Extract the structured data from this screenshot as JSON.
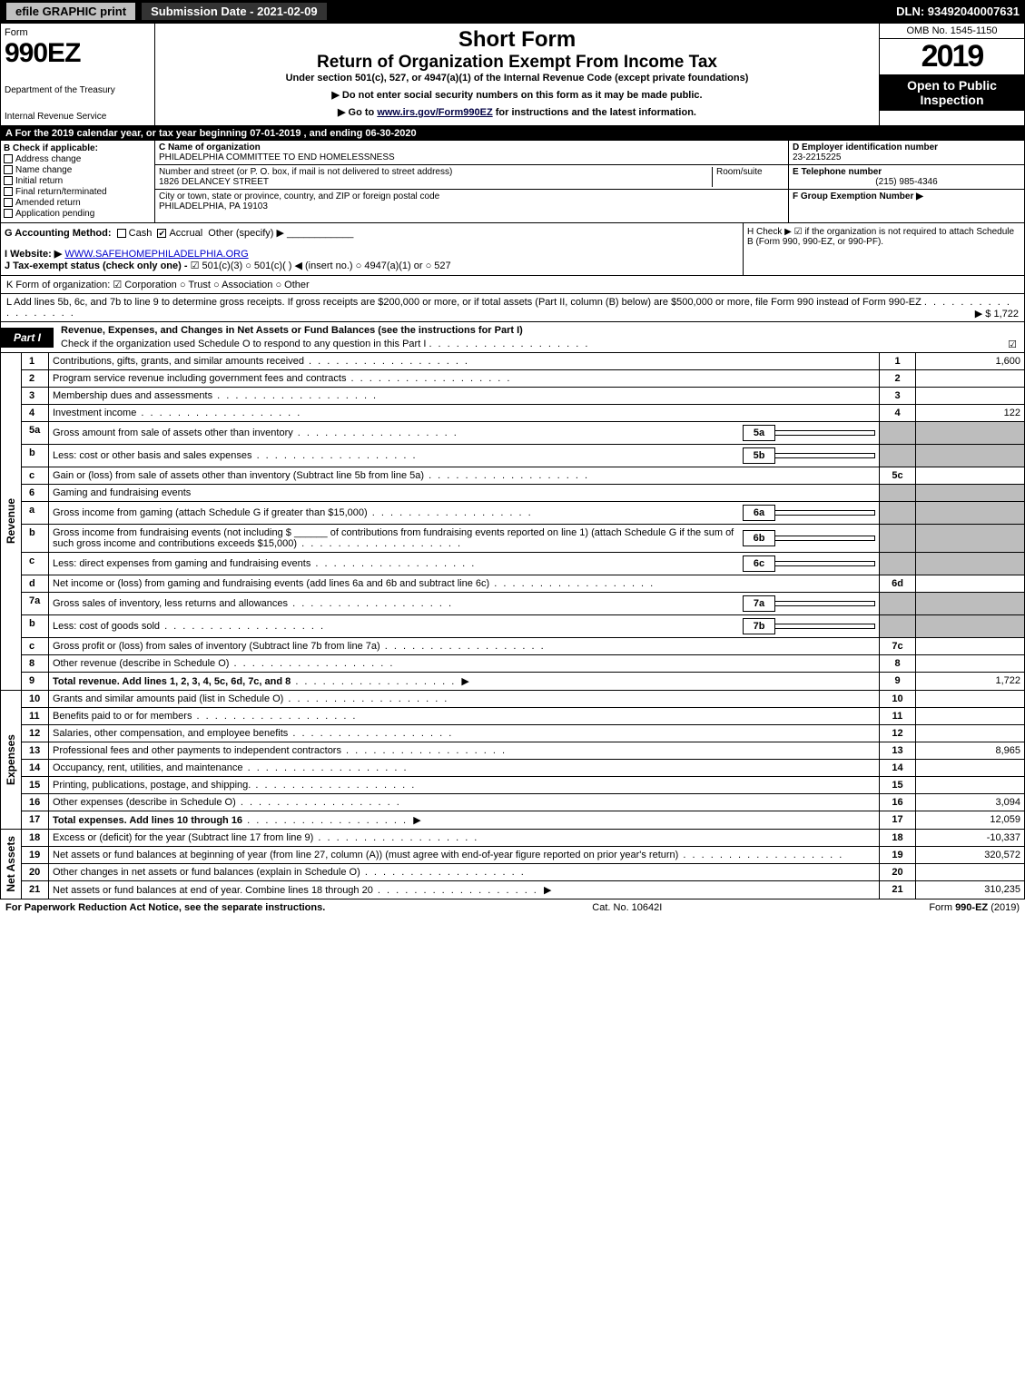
{
  "colors": {
    "black": "#000000",
    "white": "#ffffff",
    "grey_header_btn": "#c0c0c0",
    "grey_cell": "#bdbdbd",
    "link": "#0000cc"
  },
  "top_bar": {
    "efile": "efile GRAPHIC print",
    "submission": "Submission Date - 2021-02-09",
    "dln": "DLN: 93492040007631"
  },
  "header": {
    "form_word": "Form",
    "form_number": "990EZ",
    "dept1": "Department of the Treasury",
    "dept2": "Internal Revenue Service",
    "title1": "Short Form",
    "title2": "Return of Organization Exempt From Income Tax",
    "subtitle": "Under section 501(c), 527, or 4947(a)(1) of the Internal Revenue Code (except private foundations)",
    "note1": "▶ Do not enter social security numbers on this form as it may be made public.",
    "note2_pre": "▶ Go to ",
    "note2_link": "www.irs.gov/Form990EZ",
    "note2_post": " for instructions and the latest information.",
    "omb": "OMB No. 1545-1150",
    "year": "2019",
    "inspect1": "Open to Public",
    "inspect2": "Inspection"
  },
  "band_a": "A For the 2019 calendar year, or tax year beginning 07-01-2019 , and ending 06-30-2020",
  "section_b": {
    "label": "B  Check if applicable:",
    "opts": [
      "Address change",
      "Name change",
      "Initial return",
      "Final return/terminated",
      "Amended return",
      "Application pending"
    ],
    "c_label": "C Name of organization",
    "org_name": "PHILADELPHIA COMMITTEE TO END HOMELESSNESS",
    "addr_label": "Number and street (or P. O. box, if mail is not delivered to street address)",
    "room_label": "Room/suite",
    "addr": "1826 DELANCEY STREET",
    "city_label": "City or town, state or province, country, and ZIP or foreign postal code",
    "city": "PHILADELPHIA, PA  19103",
    "d_label": "D Employer identification number",
    "ein": "23-2215225",
    "e_label": "E Telephone number",
    "phone": "(215) 985-4346",
    "f_label": "F Group Exemption Number  ▶"
  },
  "section_g": {
    "g_label": "G Accounting Method:",
    "g_cash": "Cash",
    "g_accrual": "Accrual",
    "g_other": "Other (specify) ▶",
    "i_label": "I Website: ▶",
    "website": "WWW.SAFEHOMEPHILADELPHIA.ORG",
    "j_label": "J Tax-exempt status (check only one) -",
    "j_opts": "☑ 501(c)(3)  ○ 501(c)(  ) ◀ (insert no.)  ○ 4947(a)(1) or  ○ 527",
    "h_label": "H  Check ▶  ☑  if the organization is not required to attach Schedule B (Form 990, 990-EZ, or 990-PF)."
  },
  "line_k": "K Form of organization:   ☑ Corporation   ○ Trust   ○ Association   ○ Other",
  "line_l_text": "L Add lines 5b, 6c, and 7b to line 9 to determine gross receipts. If gross receipts are $200,000 or more, or if total assets (Part II, column (B) below) are $500,000 or more, file Form 990 instead of Form 990-EZ",
  "line_l_amount": "▶ $ 1,722",
  "part1": {
    "tab": "Part I",
    "title": "Revenue, Expenses, and Changes in Net Assets or Fund Balances (see the instructions for Part I)",
    "check_line": "Check if the organization used Schedule O to respond to any question in this Part I",
    "check_mark": "☑"
  },
  "side_labels": {
    "revenue": "Revenue",
    "expenses": "Expenses",
    "netassets": "Net Assets"
  },
  "rows_rev": [
    {
      "n": "1",
      "d": "Contributions, gifts, grants, and similar amounts received",
      "box": "1",
      "val": "1,600"
    },
    {
      "n": "2",
      "d": "Program service revenue including government fees and contracts",
      "box": "2",
      "val": ""
    },
    {
      "n": "3",
      "d": "Membership dues and assessments",
      "box": "3",
      "val": ""
    },
    {
      "n": "4",
      "d": "Investment income",
      "box": "4",
      "val": "122"
    },
    {
      "n": "5a",
      "d": "Gross amount from sale of assets other than inventory",
      "ibox": "5a",
      "ival": ""
    },
    {
      "n": "b",
      "d": "Less: cost or other basis and sales expenses",
      "ibox": "5b",
      "ival": ""
    },
    {
      "n": "c",
      "d": "Gain or (loss) from sale of assets other than inventory (Subtract line 5b from line 5a)",
      "box": "5c",
      "val": ""
    },
    {
      "n": "6",
      "d": "Gaming and fundraising events"
    },
    {
      "n": "a",
      "d": "Gross income from gaming (attach Schedule G if greater than $15,000)",
      "ibox": "6a",
      "ival": ""
    },
    {
      "n": "b",
      "d": "Gross income from fundraising events (not including $ ______ of contributions from fundraising events reported on line 1) (attach Schedule G if the sum of such gross income and contributions exceeds $15,000)",
      "ibox": "6b",
      "ival": ""
    },
    {
      "n": "c",
      "d": "Less: direct expenses from gaming and fundraising events",
      "ibox": "6c",
      "ival": ""
    },
    {
      "n": "d",
      "d": "Net income or (loss) from gaming and fundraising events (add lines 6a and 6b and subtract line 6c)",
      "box": "6d",
      "val": ""
    },
    {
      "n": "7a",
      "d": "Gross sales of inventory, less returns and allowances",
      "ibox": "7a",
      "ival": ""
    },
    {
      "n": "b",
      "d": "Less: cost of goods sold",
      "ibox": "7b",
      "ival": ""
    },
    {
      "n": "c",
      "d": "Gross profit or (loss) from sales of inventory (Subtract line 7b from line 7a)",
      "box": "7c",
      "val": ""
    },
    {
      "n": "8",
      "d": "Other revenue (describe in Schedule O)",
      "box": "8",
      "val": ""
    },
    {
      "n": "9",
      "d": "Total revenue. Add lines 1, 2, 3, 4, 5c, 6d, 7c, and 8",
      "box": "9",
      "val": "1,722",
      "bold": true,
      "arrow": true
    }
  ],
  "rows_exp": [
    {
      "n": "10",
      "d": "Grants and similar amounts paid (list in Schedule O)",
      "box": "10",
      "val": ""
    },
    {
      "n": "11",
      "d": "Benefits paid to or for members",
      "box": "11",
      "val": ""
    },
    {
      "n": "12",
      "d": "Salaries, other compensation, and employee benefits",
      "box": "12",
      "val": ""
    },
    {
      "n": "13",
      "d": "Professional fees and other payments to independent contractors",
      "box": "13",
      "val": "8,965"
    },
    {
      "n": "14",
      "d": "Occupancy, rent, utilities, and maintenance",
      "box": "14",
      "val": ""
    },
    {
      "n": "15",
      "d": "Printing, publications, postage, and shipping.",
      "box": "15",
      "val": ""
    },
    {
      "n": "16",
      "d": "Other expenses (describe in Schedule O)",
      "box": "16",
      "val": "3,094"
    },
    {
      "n": "17",
      "d": "Total expenses. Add lines 10 through 16",
      "box": "17",
      "val": "12,059",
      "bold": true,
      "arrow": true
    }
  ],
  "rows_na": [
    {
      "n": "18",
      "d": "Excess or (deficit) for the year (Subtract line 17 from line 9)",
      "box": "18",
      "val": "-10,337"
    },
    {
      "n": "19",
      "d": "Net assets or fund balances at beginning of year (from line 27, column (A)) (must agree with end-of-year figure reported on prior year's return)",
      "box": "19",
      "val": "320,572"
    },
    {
      "n": "20",
      "d": "Other changes in net assets or fund balances (explain in Schedule O)",
      "box": "20",
      "val": ""
    },
    {
      "n": "21",
      "d": "Net assets or fund balances at end of year. Combine lines 18 through 20",
      "box": "21",
      "val": "310,235",
      "arrow": true
    }
  ],
  "footer": {
    "left": "For Paperwork Reduction Act Notice, see the separate instructions.",
    "mid": "Cat. No. 10642I",
    "right": "Form 990-EZ (2019)"
  }
}
